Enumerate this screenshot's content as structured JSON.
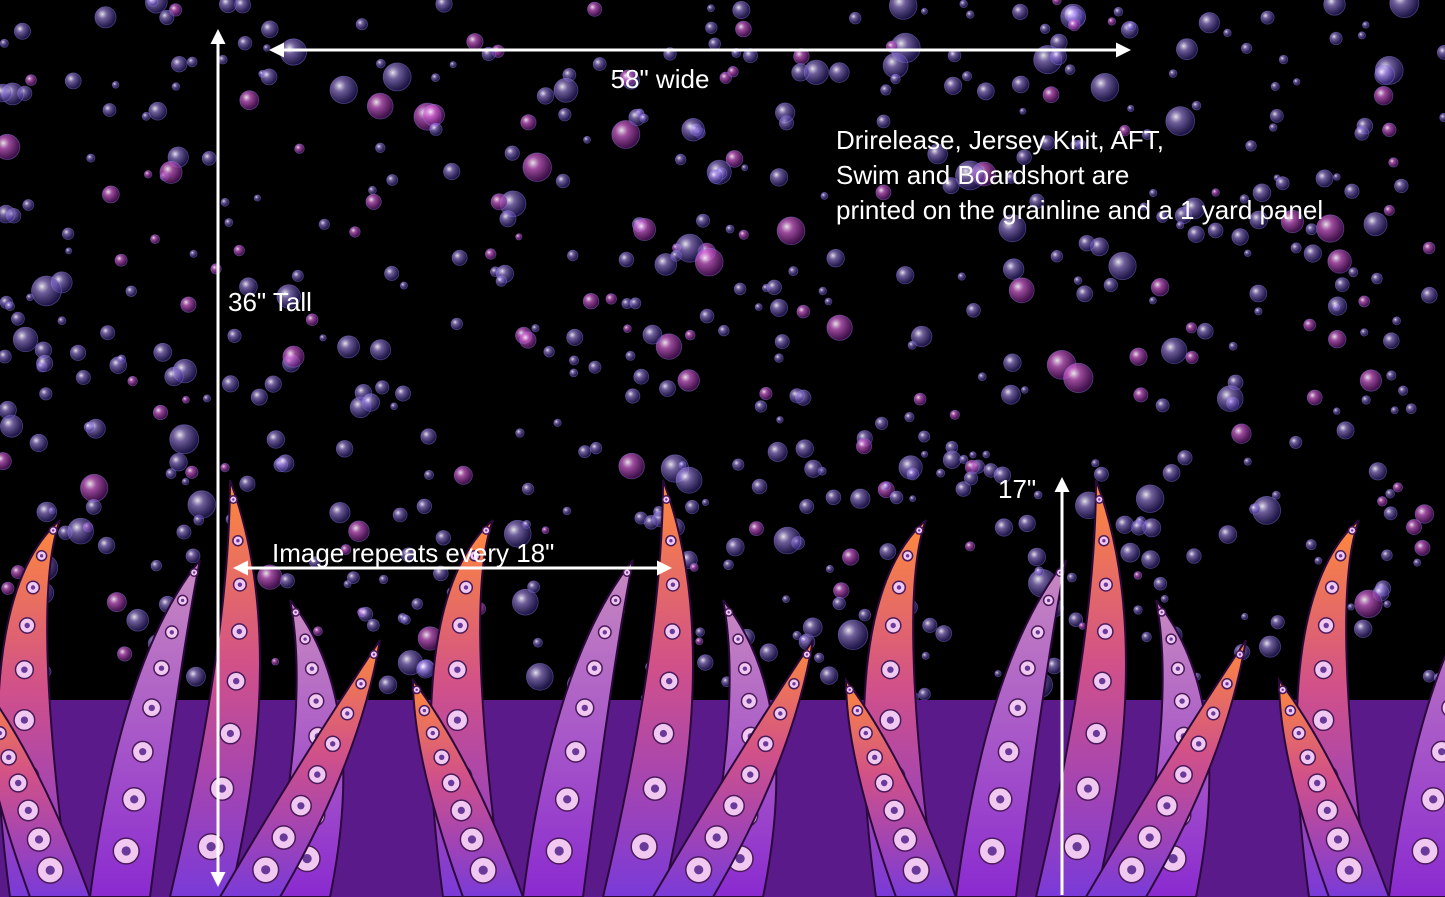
{
  "annotations": {
    "width_label": "58\" wide",
    "height_label": "36\" Tall",
    "border_label": "17\"",
    "repeat_label": "Image repeats every 18\"",
    "note_lines": [
      "Drirelease, Jersey Knit, AFT,",
      "Swim and Boardshort are",
      "printed on the grainline and a 1 yard panel"
    ]
  }
}
